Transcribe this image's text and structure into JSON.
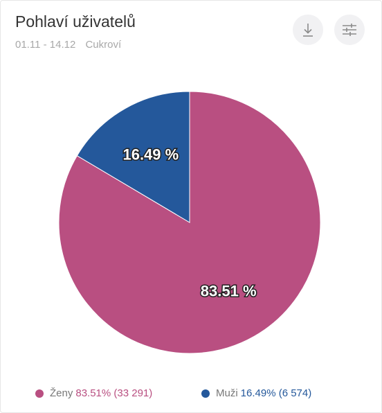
{
  "header": {
    "title": "Pohlaví uživatelů",
    "date_range": "01.11 - 14.12",
    "segment": "Cukroví"
  },
  "toolbar": {
    "download_icon": "download-icon",
    "settings_icon": "sliders-icon"
  },
  "chart_data": {
    "type": "pie",
    "title": "Pohlaví uživatelů",
    "slices": [
      {
        "name": "Ženy",
        "value": 83.51,
        "label": "83.51 %",
        "count": "33 291",
        "color": "#b94f81"
      },
      {
        "name": "Muži",
        "value": 16.49,
        "label": "16.49 %",
        "count": "6 574",
        "color": "#24589b"
      }
    ],
    "legend_placement": "bottom"
  },
  "legend": {
    "items": [
      {
        "name": "Ženy",
        "value_text": "83.51% (33 291)",
        "color": "#b94f81"
      },
      {
        "name": "Muži",
        "value_text": "16.49% (6 574)",
        "color": "#24589b"
      }
    ]
  }
}
